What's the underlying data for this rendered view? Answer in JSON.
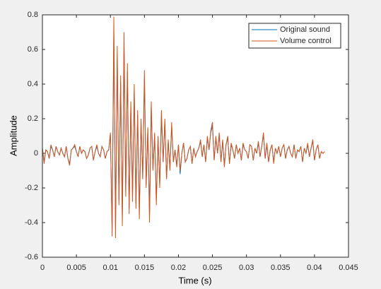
{
  "chart_data": {
    "type": "line",
    "xlabel": "Time (s)",
    "ylabel": "Amplitude",
    "xlim": [
      0,
      0.045
    ],
    "ylim": [
      -0.6,
      0.8
    ],
    "xticks": [
      0,
      0.005,
      0.01,
      0.015,
      0.02,
      0.025,
      0.03,
      0.035,
      0.04,
      0.045
    ],
    "yticks": [
      -0.6,
      -0.4,
      -0.2,
      0,
      0.2,
      0.4,
      0.6,
      0.8
    ],
    "legend": "upper right",
    "x": [
      0,
      0.00025,
      0.0005,
      0.00075,
      0.001,
      0.00125,
      0.0015,
      0.00175,
      0.002,
      0.00225,
      0.0025,
      0.00275,
      0.003,
      0.00325,
      0.0035,
      0.00375,
      0.004,
      0.00425,
      0.0045,
      0.00475,
      0.005,
      0.00525,
      0.0055,
      0.00575,
      0.006,
      0.00625,
      0.0065,
      0.00675,
      0.007,
      0.00725,
      0.0075,
      0.00775,
      0.008,
      0.00825,
      0.0085,
      0.00875,
      0.009,
      0.00925,
      0.0095,
      0.00975,
      0.01,
      0.01025,
      0.0105,
      0.01075,
      0.011,
      0.01125,
      0.0115,
      0.01175,
      0.012,
      0.01225,
      0.0125,
      0.01275,
      0.013,
      0.01325,
      0.0135,
      0.01375,
      0.014,
      0.01425,
      0.0145,
      0.01475,
      0.015,
      0.01525,
      0.0155,
      0.01575,
      0.016,
      0.01625,
      0.0165,
      0.01675,
      0.017,
      0.01725,
      0.0175,
      0.01775,
      0.018,
      0.01825,
      0.0185,
      0.01875,
      0.019,
      0.01925,
      0.0195,
      0.01975,
      0.02,
      0.02025,
      0.0205,
      0.02075,
      0.021,
      0.02125,
      0.0215,
      0.02175,
      0.022,
      0.02225,
      0.0225,
      0.02275,
      0.023,
      0.02325,
      0.0235,
      0.02375,
      0.024,
      0.02425,
      0.0245,
      0.02475,
      0.025,
      0.02525,
      0.0255,
      0.02575,
      0.026,
      0.02625,
      0.0265,
      0.02675,
      0.027,
      0.02725,
      0.0275,
      0.02775,
      0.028,
      0.02825,
      0.0285,
      0.02875,
      0.029,
      0.02925,
      0.0295,
      0.02975,
      0.03,
      0.03025,
      0.0305,
      0.03075,
      0.031,
      0.03125,
      0.0315,
      0.03175,
      0.032,
      0.03225,
      0.0325,
      0.03275,
      0.033,
      0.03325,
      0.0335,
      0.03375,
      0.034,
      0.03425,
      0.0345,
      0.03475,
      0.035,
      0.03525,
      0.0355,
      0.03575,
      0.036,
      0.03625,
      0.0365,
      0.03675,
      0.037,
      0.03725,
      0.0375,
      0.03775,
      0.038,
      0.03825,
      0.0385,
      0.03875,
      0.039,
      0.03925,
      0.0395,
      0.03975,
      0.04,
      0.04025,
      0.0405,
      0.04075,
      0.041,
      0.04125,
      0.0415
    ],
    "series": [
      {
        "name": "Original sound",
        "color": "#0072bd",
        "values": [
          0.03,
          -0.05,
          0.02,
          0.01,
          -0.03,
          0.04,
          0.02,
          -0.02,
          0.04,
          0.01,
          -0.01,
          0.03,
          0,
          -0.02,
          0.04,
          -0.03,
          -0.06,
          0.02,
          0.03,
          0.04,
          0.01,
          -0.02,
          0.04,
          0,
          0.02,
          0.01,
          -0.03,
          -0.01,
          0.03,
          0.04,
          -0.04,
          0.01,
          0.04,
          0,
          -0.02,
          0.04,
          0.02,
          -0.03,
          0.01,
          0.02,
          0.11,
          -0.44,
          0.7,
          -0.45,
          0.56,
          -0.27,
          0.41,
          -0.38,
          0.63,
          -0.22,
          0.47,
          -0.32,
          0.27,
          -0.25,
          0.36,
          -0.29,
          0.22,
          -0.34,
          0.18,
          -0.14,
          0.43,
          -0.18,
          0.14,
          -0.36,
          0.27,
          -0.09,
          0.11,
          -0.27,
          0.09,
          -0.18,
          0.22,
          -0.05,
          0.18,
          -0.14,
          0.07,
          -0.09,
          0.16,
          -0.05,
          0.02,
          -0.07,
          0.05,
          -0.12,
          0,
          0.06,
          -0.05,
          -0.03,
          0.02,
          0.04,
          -0.06,
          0.03,
          -0.02,
          0.01,
          0.03,
          0.07,
          -0.02,
          0.05,
          -0.05,
          0.09,
          0.02,
          0.12,
          0.16,
          -0.04,
          0.09,
          0,
          0.11,
          -0.05,
          0.07,
          -0.07,
          0.05,
          0.09,
          -0.06,
          0.05,
          0.02,
          -0.03,
          0.05,
          0,
          0.03,
          -0.04,
          0.05,
          0.02,
          0.01,
          -0.03,
          0.05,
          0.04,
          -0.04,
          0.03,
          0,
          0.06,
          -0.02,
          0.04,
          0.11,
          -0.03,
          0.05,
          -0.05,
          0.02,
          0.05,
          -0.05,
          0.03,
          0,
          0.04,
          -0.02,
          0.03,
          0.05,
          -0.03,
          0.02,
          0.04,
          0,
          -0.02,
          0.05,
          -0.03,
          0.02,
          0.01,
          0.04,
          -0.05,
          0.03,
          0,
          0.05,
          -0.02,
          0.03,
          0.07,
          -0.04,
          0.02,
          0.05,
          -0.03,
          0.01,
          0,
          0.01
        ]
      },
      {
        "name": "Volume control",
        "color": "#d95319",
        "values": [
          0.03,
          -0.06,
          0.02,
          0.01,
          -0.03,
          0.05,
          0.02,
          -0.02,
          0.04,
          0.01,
          -0.01,
          0.03,
          0,
          -0.02,
          0.04,
          -0.03,
          -0.07,
          0.02,
          0.03,
          0.05,
          0.01,
          -0.02,
          0.04,
          0,
          0.02,
          0.01,
          -0.03,
          -0.01,
          0.03,
          0.04,
          -0.04,
          0.01,
          0.05,
          0,
          -0.02,
          0.04,
          0.02,
          -0.03,
          0.01,
          0.02,
          0.12,
          -0.48,
          0.79,
          -0.49,
          0.62,
          -0.3,
          0.45,
          -0.42,
          0.7,
          -0.25,
          0.52,
          -0.35,
          0.3,
          -0.28,
          0.4,
          -0.32,
          0.25,
          -0.38,
          0.2,
          -0.15,
          0.48,
          -0.2,
          0.15,
          -0.4,
          0.3,
          -0.1,
          0.12,
          -0.3,
          0.1,
          -0.2,
          0.25,
          -0.05,
          0.2,
          -0.15,
          0.08,
          -0.1,
          0.18,
          -0.05,
          0.02,
          -0.08,
          0.05,
          -0.1,
          0,
          0.06,
          -0.05,
          -0.03,
          0.02,
          0.04,
          -0.06,
          0.03,
          -0.02,
          0.01,
          0.03,
          0.08,
          -0.02,
          0.05,
          -0.05,
          0.1,
          0.02,
          0.13,
          0.18,
          -0.04,
          0.1,
          0,
          0.12,
          -0.05,
          0.08,
          -0.08,
          0.05,
          0.1,
          -0.06,
          0.06,
          0.02,
          -0.03,
          0.05,
          0,
          0.03,
          -0.04,
          0.06,
          0.02,
          0.01,
          -0.03,
          0.05,
          0.04,
          -0.04,
          0.03,
          0,
          0.07,
          -0.02,
          0.04,
          0.12,
          -0.03,
          0.06,
          -0.05,
          0.02,
          0.05,
          -0.06,
          0.03,
          0,
          0.04,
          -0.02,
          0.03,
          0.05,
          -0.03,
          0.02,
          0.04,
          0,
          -0.02,
          0.05,
          -0.03,
          0.02,
          0.01,
          0.04,
          -0.05,
          0.03,
          0,
          0.06,
          -0.02,
          0.03,
          0.08,
          -0.04,
          0.02,
          0.05,
          -0.03,
          0.01,
          0,
          0.01
        ]
      }
    ]
  }
}
